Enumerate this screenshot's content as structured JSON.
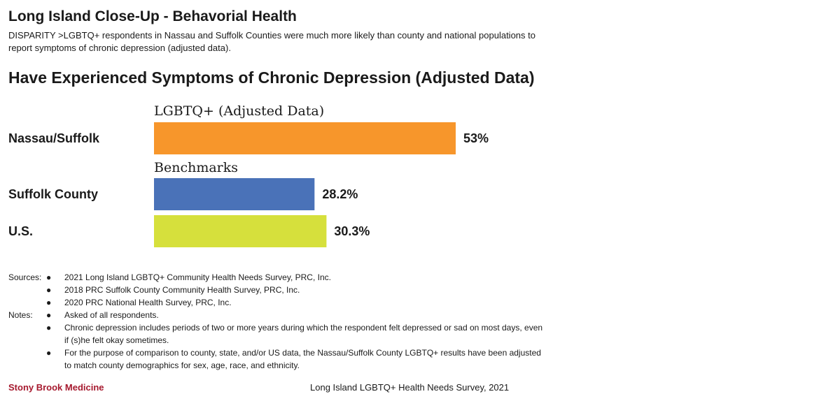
{
  "header": {
    "title": "Long Island Close-Up - Behavorial Health",
    "subtitle": "DISPARITY >LGBTQ+ respondents in Nassau and Suffolk Counties were much more likely than county and national populations to report symptoms of chronic depression (adjusted data)."
  },
  "chart_data": {
    "type": "bar",
    "orientation": "horizontal",
    "title": "Have Experienced Symptoms of Chronic Depression (Adjusted Data)",
    "groups": [
      {
        "heading": "LGBTQ+ (Adjusted Data)",
        "categories": [
          "Nassau/Suffolk"
        ],
        "values": [
          53
        ],
        "labels": [
          "53%"
        ],
        "colors": [
          "#f7962b"
        ]
      },
      {
        "heading": "Benchmarks",
        "categories": [
          "Suffolk County",
          "U.S."
        ],
        "values": [
          28.2,
          30.3
        ],
        "labels": [
          "28.2%",
          "30.3%"
        ],
        "colors": [
          "#4a72b8",
          "#d6e03c"
        ]
      }
    ],
    "xlim": [
      0,
      100
    ],
    "grid": false
  },
  "notes": {
    "sources_label": "Sources:",
    "sources": [
      "2021 Long Island LGBTQ+ Community Health Needs Survey, PRC, Inc.",
      "2018 PRC Suffolk County Community Health Survey, PRC, Inc.",
      "2020 PRC National Health Survey, PRC, Inc."
    ],
    "notes_label": "Notes:",
    "notes": [
      "Asked of all respondents.",
      "Chronic depression includes periods of two or more years during which the respondent felt depressed or sad on most days, even if (s)he felt okay sometimes.",
      "For the purpose of comparison to county, state, and/or US data, the Nassau/Suffolk County LGBTQ+ results have been adjusted to match county demographics for sex, age, race, and ethnicity."
    ],
    "bullet": "●"
  },
  "footer": {
    "left": "Stony Brook Medicine",
    "right": "Long Island LGBTQ+ Health Needs Survey, 2021"
  }
}
